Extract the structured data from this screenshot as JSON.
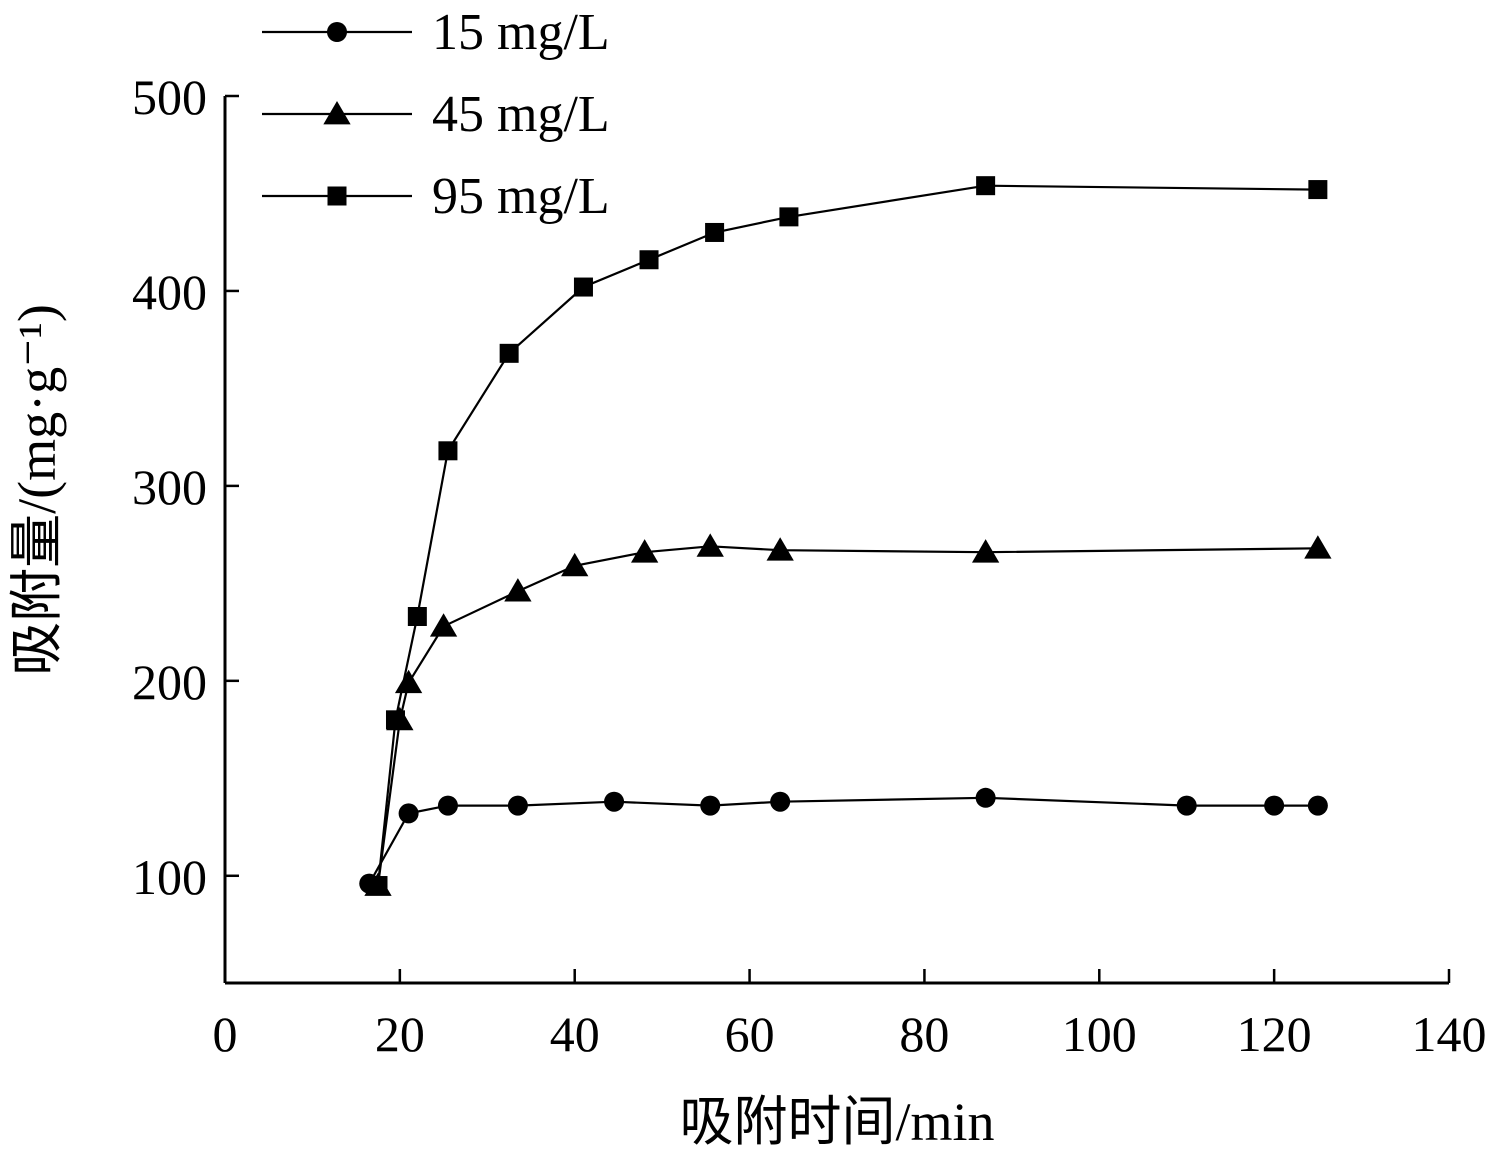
{
  "chart_data": {
    "type": "line",
    "title": "",
    "xlabel": "吸附时间/min",
    "ylabel": "吸附量/(mg·g⁻¹)",
    "xlim": [
      0,
      140
    ],
    "ylim": [
      45,
      500
    ],
    "x_ticks": [
      0,
      20,
      40,
      60,
      80,
      100,
      120,
      140
    ],
    "y_ticks": [
      100,
      200,
      300,
      400,
      500
    ],
    "grid": false,
    "legend_position": "top-left",
    "line_color": "#000000",
    "series": [
      {
        "name": "15 mg/L",
        "marker": "circle",
        "x": [
          16.5,
          21,
          25.5,
          33.5,
          44.5,
          55.5,
          63.5,
          87,
          110,
          120,
          125
        ],
        "y": [
          96,
          132,
          136,
          136,
          138,
          136,
          138,
          140,
          136,
          136,
          136
        ]
      },
      {
        "name": "45 mg/L",
        "marker": "triangle",
        "x": [
          17.5,
          20,
          21,
          25,
          33.5,
          40,
          48,
          55.5,
          63.5,
          87,
          125
        ],
        "y": [
          95,
          180,
          199,
          228,
          246,
          259,
          266,
          269,
          267,
          266,
          268
        ]
      },
      {
        "name": "95 mg/L",
        "marker": "square",
        "x": [
          17.5,
          19.5,
          22,
          25.5,
          32.5,
          41,
          48.5,
          56,
          64.5,
          87,
          125
        ],
        "y": [
          95,
          180,
          233,
          318,
          368,
          402,
          416,
          430,
          438,
          454,
          452
        ]
      }
    ]
  }
}
